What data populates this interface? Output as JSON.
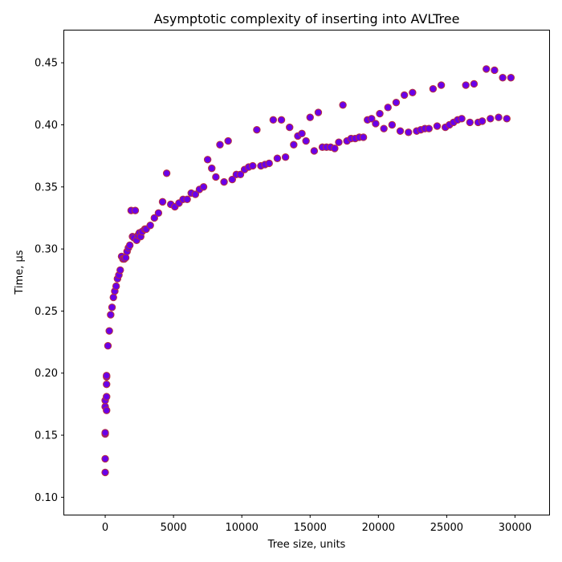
{
  "chart_data": {
    "type": "scatter",
    "title": "Asymptotic complexity of inserting into AVLTree",
    "xlabel": "Tree size, units",
    "ylabel": "Time, µs",
    "xlim": [
      -3000,
      32500
    ],
    "ylim": [
      0.086,
      0.476
    ],
    "xticks": [
      0,
      5000,
      10000,
      15000,
      20000,
      25000,
      30000
    ],
    "yticks": [
      0.1,
      0.15,
      0.2,
      0.25,
      0.3,
      0.35,
      0.4,
      0.45
    ],
    "xtick_labels": [
      "0",
      "5000",
      "10000",
      "15000",
      "20000",
      "25000",
      "30000"
    ],
    "ytick_labels": [
      "0.10",
      "0.15",
      "0.20",
      "0.25",
      "0.30",
      "0.35",
      "0.40",
      "0.45"
    ],
    "grid": false,
    "marker_fill": "#6a00e8",
    "marker_edge": "#b8323c",
    "points": [
      [
        0,
        0.12
      ],
      [
        0,
        0.131
      ],
      [
        0,
        0.151
      ],
      [
        0,
        0.152
      ],
      [
        0,
        0.173
      ],
      [
        0,
        0.178
      ],
      [
        100,
        0.17
      ],
      [
        100,
        0.181
      ],
      [
        100,
        0.191
      ],
      [
        100,
        0.197
      ],
      [
        100,
        0.198
      ],
      [
        200,
        0.222
      ],
      [
        300,
        0.234
      ],
      [
        400,
        0.247
      ],
      [
        500,
        0.253
      ],
      [
        600,
        0.261
      ],
      [
        700,
        0.266
      ],
      [
        800,
        0.27
      ],
      [
        900,
        0.276
      ],
      [
        1000,
        0.279
      ],
      [
        1100,
        0.283
      ],
      [
        1200,
        0.294
      ],
      [
        1300,
        0.292
      ],
      [
        1400,
        0.292
      ],
      [
        1500,
        0.293
      ],
      [
        1600,
        0.298
      ],
      [
        1700,
        0.301
      ],
      [
        1800,
        0.303
      ],
      [
        1900,
        0.331
      ],
      [
        2000,
        0.31
      ],
      [
        2100,
        0.309
      ],
      [
        2200,
        0.331
      ],
      [
        2300,
        0.307
      ],
      [
        2400,
        0.311
      ],
      [
        2500,
        0.313
      ],
      [
        2600,
        0.31
      ],
      [
        2700,
        0.314
      ],
      [
        2900,
        0.316
      ],
      [
        3000,
        0.316
      ],
      [
        3300,
        0.319
      ],
      [
        3600,
        0.325
      ],
      [
        3900,
        0.329
      ],
      [
        4200,
        0.338
      ],
      [
        4500,
        0.361
      ],
      [
        4800,
        0.336
      ],
      [
        5100,
        0.334
      ],
      [
        5400,
        0.337
      ],
      [
        5700,
        0.34
      ],
      [
        6000,
        0.34
      ],
      [
        6300,
        0.345
      ],
      [
        6600,
        0.344
      ],
      [
        6900,
        0.348
      ],
      [
        7200,
        0.35
      ],
      [
        7500,
        0.372
      ],
      [
        7800,
        0.365
      ],
      [
        8100,
        0.358
      ],
      [
        8400,
        0.384
      ],
      [
        8700,
        0.354
      ],
      [
        9000,
        0.387
      ],
      [
        9300,
        0.356
      ],
      [
        9600,
        0.36
      ],
      [
        9900,
        0.36
      ],
      [
        10200,
        0.364
      ],
      [
        10500,
        0.366
      ],
      [
        10800,
        0.367
      ],
      [
        11100,
        0.396
      ],
      [
        11400,
        0.367
      ],
      [
        11700,
        0.368
      ],
      [
        12000,
        0.369
      ],
      [
        12300,
        0.404
      ],
      [
        12600,
        0.373
      ],
      [
        12900,
        0.404
      ],
      [
        13200,
        0.374
      ],
      [
        13500,
        0.398
      ],
      [
        13800,
        0.384
      ],
      [
        14100,
        0.391
      ],
      [
        14400,
        0.393
      ],
      [
        14700,
        0.387
      ],
      [
        15000,
        0.406
      ],
      [
        15300,
        0.379
      ],
      [
        15600,
        0.41
      ],
      [
        15900,
        0.382
      ],
      [
        16200,
        0.382
      ],
      [
        16500,
        0.382
      ],
      [
        16800,
        0.381
      ],
      [
        17100,
        0.386
      ],
      [
        17400,
        0.416
      ],
      [
        17700,
        0.387
      ],
      [
        18000,
        0.389
      ],
      [
        18300,
        0.389
      ],
      [
        18600,
        0.39
      ],
      [
        18900,
        0.39
      ],
      [
        19200,
        0.404
      ],
      [
        19500,
        0.405
      ],
      [
        19800,
        0.401
      ],
      [
        20100,
        0.409
      ],
      [
        20400,
        0.397
      ],
      [
        20700,
        0.414
      ],
      [
        21000,
        0.4
      ],
      [
        21300,
        0.418
      ],
      [
        21600,
        0.395
      ],
      [
        21900,
        0.424
      ],
      [
        22200,
        0.394
      ],
      [
        22500,
        0.426
      ],
      [
        22800,
        0.395
      ],
      [
        23100,
        0.396
      ],
      [
        23400,
        0.397
      ],
      [
        23700,
        0.397
      ],
      [
        24000,
        0.429
      ],
      [
        24300,
        0.399
      ],
      [
        24600,
        0.432
      ],
      [
        24900,
        0.398
      ],
      [
        25200,
        0.4
      ],
      [
        25500,
        0.402
      ],
      [
        25800,
        0.404
      ],
      [
        26100,
        0.405
      ],
      [
        26400,
        0.432
      ],
      [
        26700,
        0.402
      ],
      [
        27000,
        0.433
      ],
      [
        27300,
        0.402
      ],
      [
        27600,
        0.403
      ],
      [
        27900,
        0.445
      ],
      [
        28200,
        0.405
      ],
      [
        28500,
        0.444
      ],
      [
        28800,
        0.406
      ],
      [
        29100,
        0.438
      ],
      [
        29400,
        0.405
      ],
      [
        29700,
        0.438
      ]
    ]
  }
}
